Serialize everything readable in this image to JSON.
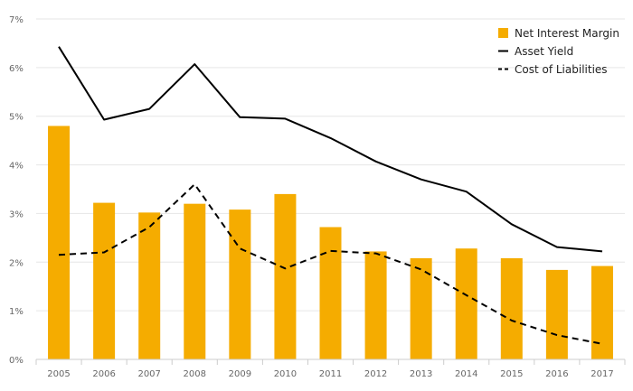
{
  "chart_data": {
    "type": "bar",
    "title": "",
    "xlabel": "",
    "ylabel": "",
    "ylim": [
      0,
      7
    ],
    "y_ticks": [
      "0%",
      "1%",
      "2%",
      "3%",
      "4%",
      "5%",
      "6%",
      "7%"
    ],
    "grid": true,
    "legend_position": "top-right",
    "categories": [
      "2005",
      "2006",
      "2007",
      "2008",
      "2009",
      "2010",
      "2011",
      "2012",
      "2013",
      "2014",
      "2015",
      "2016",
      "2017"
    ],
    "series": [
      {
        "name": "Net Interest Margin",
        "kind": "bar",
        "color": "#f5ac00",
        "values": [
          4.8,
          3.22,
          3.02,
          3.2,
          3.08,
          3.4,
          2.72,
          2.22,
          2.08,
          2.28,
          2.08,
          1.84,
          1.92
        ]
      },
      {
        "name": "Asset Yield",
        "kind": "line",
        "style": "solid",
        "color": "#000000",
        "values": [
          6.43,
          4.93,
          5.15,
          6.07,
          4.98,
          4.95,
          4.55,
          4.07,
          3.7,
          3.45,
          2.78,
          2.31,
          2.22
        ]
      },
      {
        "name": "Cost of Liabilities",
        "kind": "line",
        "style": "dashed",
        "color": "#000000",
        "values": [
          2.15,
          2.2,
          2.72,
          3.6,
          2.28,
          1.87,
          2.23,
          2.18,
          1.85,
          1.32,
          0.8,
          0.5,
          0.32
        ]
      }
    ]
  }
}
